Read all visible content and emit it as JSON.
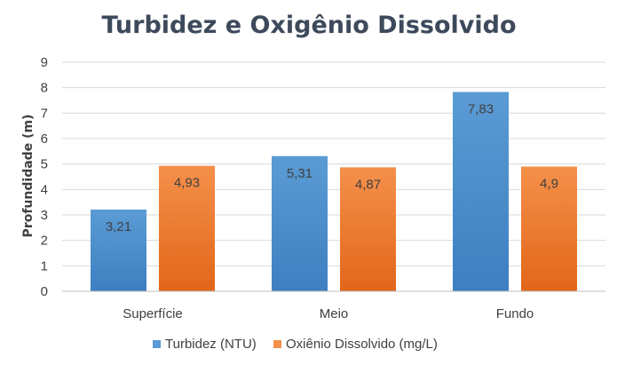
{
  "chart_data": {
    "type": "bar",
    "title": "Turbidez e Oxigênio Dissolvido",
    "xlabel": "",
    "ylabel": "Profundidade (m)",
    "categories": [
      "Superfície",
      "Meio",
      "Fundo"
    ],
    "series": [
      {
        "name": "Turbidez (NTU)",
        "values": [
          3.21,
          5.31,
          7.83
        ],
        "labels": [
          "3,21",
          "5,31",
          "7,83"
        ],
        "color": "#5b9bd5",
        "color_dark": "#3d7fc0"
      },
      {
        "name": "Oxiênio Dissolvido (mg/L)",
        "values": [
          4.93,
          4.87,
          4.9
        ],
        "labels": [
          "4,93",
          "4,87",
          "4,9"
        ],
        "color": "#f4904a",
        "color_dark": "#e2661a"
      }
    ],
    "ylim": [
      0,
      9
    ],
    "yticks": [
      0,
      1,
      2,
      3,
      4,
      5,
      6,
      7,
      8,
      9
    ],
    "grid": true,
    "legend_position": "bottom"
  }
}
